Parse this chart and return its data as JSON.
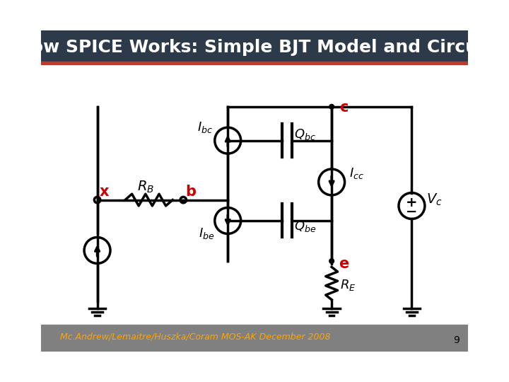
{
  "title": "How SPICE Works: Simple BJT Model and Circuit",
  "title_bg": "#2d3a4a",
  "title_color": "#ffffff",
  "accent_bar_color": "#c0392b",
  "bg_color": "#ffffff",
  "footer_bg": "#808080",
  "footer_text": "Mc.Andrew/Lemaitre/Huszka/Coram MOS-AK December 2008",
  "footer_color": "#ffa500",
  "page_number": "9",
  "red_color": "#cc0000",
  "black_color": "#000000"
}
